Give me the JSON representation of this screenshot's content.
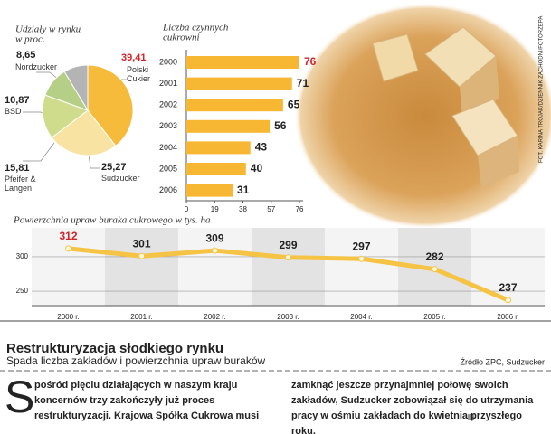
{
  "chart_data": [
    {
      "type": "pie",
      "title": [
        "Udziały w rynku",
        "w proc."
      ],
      "categories": [
        "Polski Cukier",
        "Sudzucker",
        "Pfeifer & Langen",
        "BSD",
        "Nordzucker"
      ],
      "values": [
        39.41,
        25.27,
        15.81,
        10.87,
        8.65
      ],
      "value_labels": [
        "39,41",
        "25,27",
        "15,81",
        "10,87",
        "8,65"
      ],
      "colors": [
        "#f6bb3a",
        "#f8e3a3",
        "#cedc8c",
        "#b5cf86",
        "#b4b4b4"
      ],
      "highlight_color": "#d2232a"
    },
    {
      "type": "hbar",
      "title": [
        "Liczba czynnych",
        "cukrowni"
      ],
      "categories": [
        "2000",
        "2001",
        "2002",
        "2003",
        "2004",
        "2005",
        "2006"
      ],
      "values": [
        76,
        71,
        65,
        56,
        43,
        40,
        31
      ],
      "xlim": [
        0,
        76
      ],
      "xticks": [
        0,
        19,
        38,
        57,
        76
      ],
      "color": "#f7b733",
      "highlight_color": "#d2232a"
    },
    {
      "type": "line",
      "title": "Powierzchnia upraw buraka cukrowego w tys. ha",
      "categories": [
        "2000 r.",
        "2001 r.",
        "2002 r.",
        "2003 r.",
        "2004 r.",
        "2005 r.",
        "2006 r."
      ],
      "values": [
        312,
        301,
        309,
        299,
        297,
        282,
        237
      ],
      "ylim": [
        229,
        342
      ],
      "yticks": [
        250,
        300
      ],
      "color": "#f6c445",
      "highlight_color": "#d2232a"
    }
  ],
  "photo_credit": "FOT. KARINA TROJAK/DZIENNIK ZACHODNI/FOTORZEPA",
  "headline": "Restrukturyzacja słodkiego rynku",
  "subtitle": "Spada liczba zakładów i powierzchnia upraw buraków",
  "source": "Źródło ZPC, Sudzucker",
  "article": {
    "dropcap": "S",
    "column1": "pośród pięciu działających w naszym kraju koncernów trzy zakończyły już proces restrukturyzacji. Krajowa Spółka Cukrowa musi",
    "column2": "zamknąć jeszcze przynajmniej połowę swoich zakładów, Sudzucker zobowiązał się do utrzymania pracy w ośmiu zakładach do kwietnia przyszłego roku."
  }
}
